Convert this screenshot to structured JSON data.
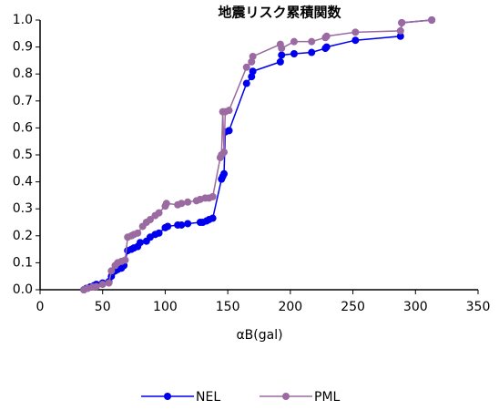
{
  "chart_data": {
    "type": "line",
    "title": "地震リスク累積関数",
    "x_label": "αB(gal)",
    "xlim": [
      0,
      350
    ],
    "xticks": [
      0,
      50,
      100,
      150,
      200,
      250,
      300,
      350
    ],
    "ylim": [
      0,
      1
    ],
    "yticks": [
      {
        "value": 0,
        "label": "0.0"
      },
      0.1,
      0.2,
      0.3,
      0.4,
      0.5,
      0.6,
      0.7,
      0.8,
      0.9,
      {
        "value": 1,
        "label": "1.0"
      }
    ],
    "series": [
      {
        "name": "NEL",
        "color": "#0000ee",
        "x": [
          35,
          37,
          40,
          43,
          45,
          50,
          55,
          57,
          58,
          60,
          62,
          65,
          67,
          70,
          73,
          75,
          78,
          80,
          85,
          88,
          92,
          95,
          100,
          102,
          110,
          113,
          118,
          128,
          130,
          133,
          135,
          138,
          145,
          146,
          147,
          148,
          151,
          165,
          169,
          170,
          192,
          193,
          203,
          217,
          228,
          229,
          252,
          288,
          289,
          313
        ],
        "values": [
          0,
          0.005,
          0.01,
          0.015,
          0.02,
          0.025,
          0.03,
          0.05,
          0.065,
          0.07,
          0.075,
          0.08,
          0.09,
          0.145,
          0.15,
          0.155,
          0.16,
          0.175,
          0.18,
          0.195,
          0.205,
          0.21,
          0.23,
          0.235,
          0.24,
          0.24,
          0.245,
          0.25,
          0.25,
          0.255,
          0.26,
          0.265,
          0.41,
          0.42,
          0.43,
          0.585,
          0.59,
          0.765,
          0.79,
          0.81,
          0.845,
          0.87,
          0.875,
          0.88,
          0.895,
          0.9,
          0.925,
          0.94,
          0.99,
          1.0
        ]
      },
      {
        "name": "PML",
        "color": "#9b6aa0",
        "x": [
          35,
          38,
          42,
          45,
          50,
          55,
          57,
          60,
          62,
          65,
          68,
          70,
          73,
          75,
          78,
          82,
          85,
          88,
          92,
          95,
          100,
          101,
          110,
          113,
          118,
          125,
          128,
          132,
          135,
          138,
          144,
          145,
          146,
          147,
          148,
          151,
          165,
          169,
          170,
          192,
          193,
          203,
          217,
          228,
          229,
          252,
          288,
          289,
          313
        ],
        "values": [
          0,
          0.005,
          0.01,
          0.012,
          0.02,
          0.025,
          0.07,
          0.09,
          0.1,
          0.105,
          0.11,
          0.195,
          0.2,
          0.205,
          0.21,
          0.235,
          0.25,
          0.26,
          0.275,
          0.285,
          0.31,
          0.32,
          0.315,
          0.32,
          0.325,
          0.33,
          0.335,
          0.34,
          0.34,
          0.345,
          0.49,
          0.5,
          0.66,
          0.51,
          0.66,
          0.665,
          0.825,
          0.845,
          0.865,
          0.91,
          0.895,
          0.92,
          0.92,
          0.935,
          0.94,
          0.955,
          0.96,
          0.99,
          1.0
        ]
      }
    ]
  }
}
